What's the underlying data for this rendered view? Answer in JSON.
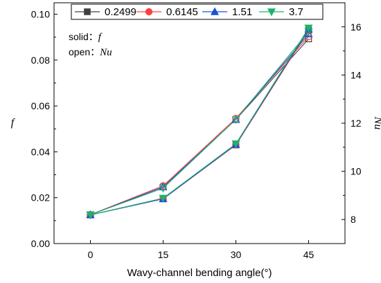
{
  "chart_data": {
    "type": "line",
    "xlabel": "Wavy-channel bending angle(°)",
    "ylabel_left": "f",
    "ylabel_right": "Nu",
    "x": [
      0,
      15,
      30,
      45
    ],
    "x_ticks": [
      0,
      15,
      30,
      45
    ],
    "xlim": [
      -7.5,
      52.5
    ],
    "ylim_left": [
      0,
      0.105
    ],
    "ylim_right": [
      7,
      17
    ],
    "y_left_ticks": [
      "0.00",
      "0.02",
      "0.04",
      "0.06",
      "0.08",
      "0.10"
    ],
    "y_right_ticks": [
      "8",
      "10",
      "12",
      "14",
      "16"
    ],
    "legend_position": "top-center",
    "annotations": {
      "solid_prefix": "solid：",
      "solid_symbol": "f",
      "open_prefix": "open：",
      "open_symbol": "Nu"
    },
    "series": [
      {
        "name": "0.2499",
        "color": "#404040",
        "marker": "square",
        "f": [
          0.0125,
          0.0195,
          0.043,
          0.093
        ],
        "Nu": [
          8.2,
          9.35,
          12.15,
          15.5
        ]
      },
      {
        "name": "0.6145",
        "color": "#ff4040",
        "marker": "circle",
        "f": [
          0.0125,
          0.0195,
          0.043,
          0.093
        ],
        "Nu": [
          8.2,
          9.4,
          12.2,
          15.6
        ]
      },
      {
        "name": "1.51",
        "color": "#1a4fd6",
        "marker": "triangle-up",
        "f": [
          0.0125,
          0.0195,
          0.0432,
          0.0935
        ],
        "Nu": [
          8.2,
          9.35,
          12.15,
          15.7
        ]
      },
      {
        "name": "3.7",
        "color": "#1db36b",
        "marker": "triangle-down",
        "f": [
          0.0125,
          0.0198,
          0.0435,
          0.094
        ],
        "Nu": [
          8.2,
          9.3,
          12.15,
          15.8
        ]
      }
    ]
  }
}
